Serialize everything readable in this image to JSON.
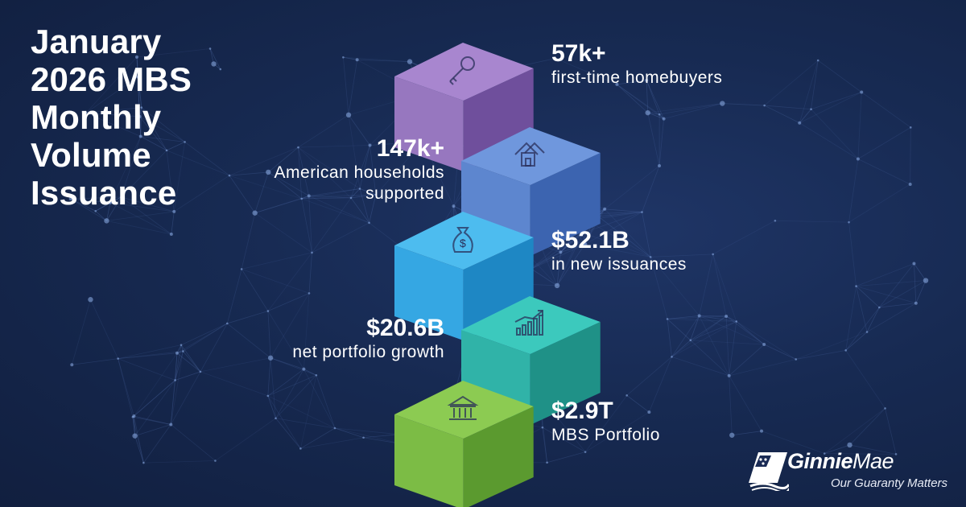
{
  "title": {
    "lines": [
      "January",
      "2026 MBS",
      "Monthly",
      "Volume",
      "Issuance"
    ]
  },
  "stats": [
    {
      "value": "57k+",
      "label": "first-time homebuyers",
      "icon": "key-icon",
      "color_top": "#a886cf",
      "color_front": "#9777bf",
      "color_side": "#6f4f9c"
    },
    {
      "value": "147k+",
      "label_lines": [
        "American households",
        "supported"
      ],
      "icon": "house-icon",
      "color_top": "#6f97dd",
      "color_front": "#5d86cf",
      "color_side": "#3c64b0"
    },
    {
      "value": "$52.1B",
      "label": "in new issuances",
      "icon": "money-bag-icon",
      "color_top": "#4dbcef",
      "color_front": "#35a7e3",
      "color_side": "#1e87c4"
    },
    {
      "value": "$20.6B",
      "label": "net portfolio growth",
      "icon": "bar-chart-growth-icon",
      "color_top": "#3cc9bd",
      "color_front": "#30b3a8",
      "color_side": "#1f9187"
    },
    {
      "value": "$2.9T",
      "label": "MBS Portfolio",
      "icon": "bank-building-icon",
      "color_top": "#8ccb52",
      "color_front": "#7cbc45",
      "color_side": "#5b9a2f"
    }
  ],
  "logo": {
    "name_part1": "Ginnie",
    "name_part2": "Mae",
    "tagline": "Our Guaranty Matters"
  }
}
